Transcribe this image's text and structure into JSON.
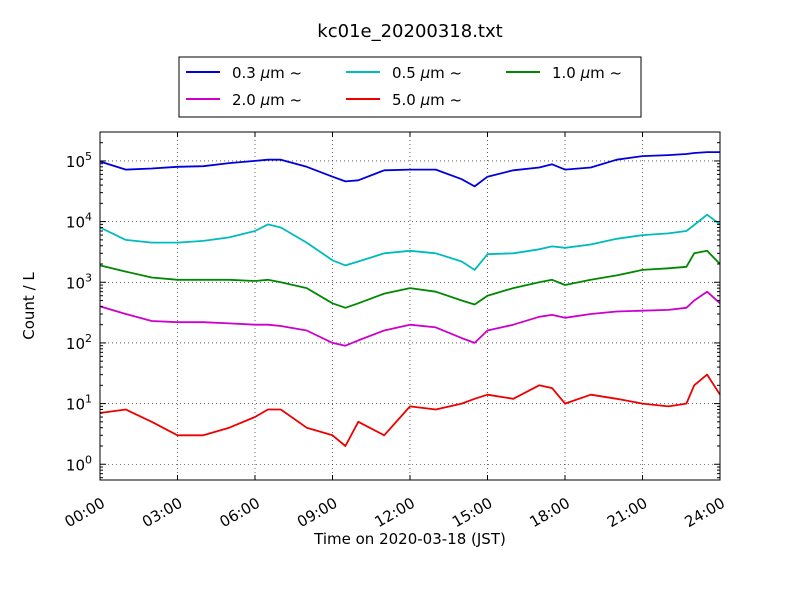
{
  "chart_data": {
    "type": "line",
    "title": "kc01e_20200318.txt",
    "xlabel": "Time on 2020-03-18 (JST)",
    "ylabel": "Count / L",
    "y_scale": "log",
    "ylim": [
      0.55,
      300000
    ],
    "xlim": [
      "00:00",
      "24:00"
    ],
    "x_tick_labels": [
      "00:00",
      "03:00",
      "06:00",
      "09:00",
      "12:00",
      "15:00",
      "18:00",
      "21:00",
      "24:00"
    ],
    "y_tick_labels": [
      {
        "base": "10",
        "exp": "0"
      },
      {
        "base": "10",
        "exp": "1"
      },
      {
        "base": "10",
        "exp": "2"
      },
      {
        "base": "10",
        "exp": "3"
      },
      {
        "base": "10",
        "exp": "4"
      },
      {
        "base": "10",
        "exp": "5"
      }
    ],
    "grid": true,
    "legend_position": "top-center (above plot)",
    "x_hours": [
      0,
      1,
      2,
      3,
      4,
      5,
      6,
      6.5,
      7,
      8,
      9,
      9.5,
      10,
      11,
      12,
      13,
      14,
      14.5,
      15,
      16,
      17,
      17.5,
      18,
      19,
      20,
      21,
      22,
      22.7,
      23,
      23.5,
      24
    ],
    "series": [
      {
        "name": "0.3",
        "unit": "µm",
        "suffix": "~",
        "color": "#0000dd",
        "values": [
          98000,
          72000,
          75000,
          80000,
          82000,
          92000,
          100000,
          105000,
          105000,
          80000,
          55000,
          46000,
          48000,
          70000,
          72000,
          72000,
          50000,
          38000,
          55000,
          70000,
          78000,
          88000,
          72000,
          78000,
          105000,
          120000,
          125000,
          130000,
          135000,
          140000,
          140000
        ]
      },
      {
        "name": "0.5",
        "unit": "µm",
        "suffix": "~",
        "color": "#00bbbb",
        "values": [
          8000,
          5000,
          4500,
          4500,
          4800,
          5500,
          7000,
          9000,
          8000,
          4500,
          2300,
          1900,
          2200,
          3000,
          3300,
          3000,
          2200,
          1600,
          2900,
          3000,
          3500,
          3900,
          3700,
          4200,
          5200,
          6000,
          6400,
          7000,
          8800,
          13000,
          9000
        ]
      },
      {
        "name": "1.0",
        "unit": "µm",
        "suffix": "~",
        "color": "#008800",
        "values": [
          1900,
          1500,
          1200,
          1100,
          1100,
          1100,
          1050,
          1100,
          1000,
          800,
          450,
          380,
          450,
          650,
          800,
          700,
          500,
          430,
          600,
          800,
          1000,
          1100,
          900,
          1100,
          1300,
          1600,
          1700,
          1800,
          3000,
          3300,
          2000
        ]
      },
      {
        "name": "2.0",
        "unit": "µm",
        "suffix": "~",
        "color": "#cc00cc",
        "values": [
          400,
          300,
          230,
          220,
          220,
          210,
          200,
          200,
          190,
          160,
          100,
          90,
          110,
          160,
          200,
          180,
          120,
          100,
          160,
          200,
          270,
          290,
          260,
          300,
          330,
          340,
          350,
          380,
          500,
          700,
          450
        ]
      },
      {
        "name": "5.0",
        "unit": "µm",
        "suffix": "~",
        "color": "#ee0000",
        "values": [
          7,
          8,
          5,
          3,
          3,
          4,
          6,
          8,
          8,
          4,
          3,
          2,
          5,
          3,
          9,
          8,
          10,
          12,
          14,
          12,
          20,
          18,
          10,
          14,
          12,
          10,
          9,
          10,
          20,
          30,
          14
        ]
      }
    ]
  }
}
